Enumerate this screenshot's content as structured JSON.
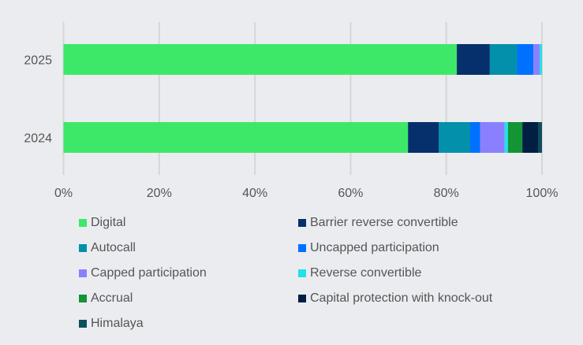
{
  "chart_data": {
    "type": "bar",
    "orientation": "horizontal",
    "stacked": true,
    "categories": [
      "2025",
      "2024"
    ],
    "xlim": [
      0,
      100
    ],
    "xticks": [
      "0%",
      "20%",
      "40%",
      "60%",
      "80%",
      "100%"
    ],
    "grid": true,
    "legend_position": "bottom",
    "series": [
      {
        "name": "Digital",
        "color": "#3de869",
        "values": [
          82.2,
          72.0
        ]
      },
      {
        "name": "Barrier reverse convertible",
        "color": "#06306b",
        "values": [
          6.9,
          6.4
        ]
      },
      {
        "name": "Autocall",
        "color": "#0390aa",
        "values": [
          5.7,
          6.6
        ]
      },
      {
        "name": "Uncapped participation",
        "color": "#0070ff",
        "values": [
          3.4,
          2.1
        ]
      },
      {
        "name": "Capped participation",
        "color": "#8a80ff",
        "values": [
          1.3,
          5.1
        ]
      },
      {
        "name": "Reverse convertible",
        "color": "#22e0e8",
        "values": [
          0.5,
          0.7
        ]
      },
      {
        "name": "Accrual",
        "color": "#139435",
        "values": [
          0,
          3.0
        ]
      },
      {
        "name": "Capital protection with knock-out",
        "color": "#001f42",
        "values": [
          0,
          3.4
        ]
      },
      {
        "name": "Himalaya",
        "color": "#0b4f5c",
        "values": [
          0,
          0.7
        ]
      }
    ]
  }
}
